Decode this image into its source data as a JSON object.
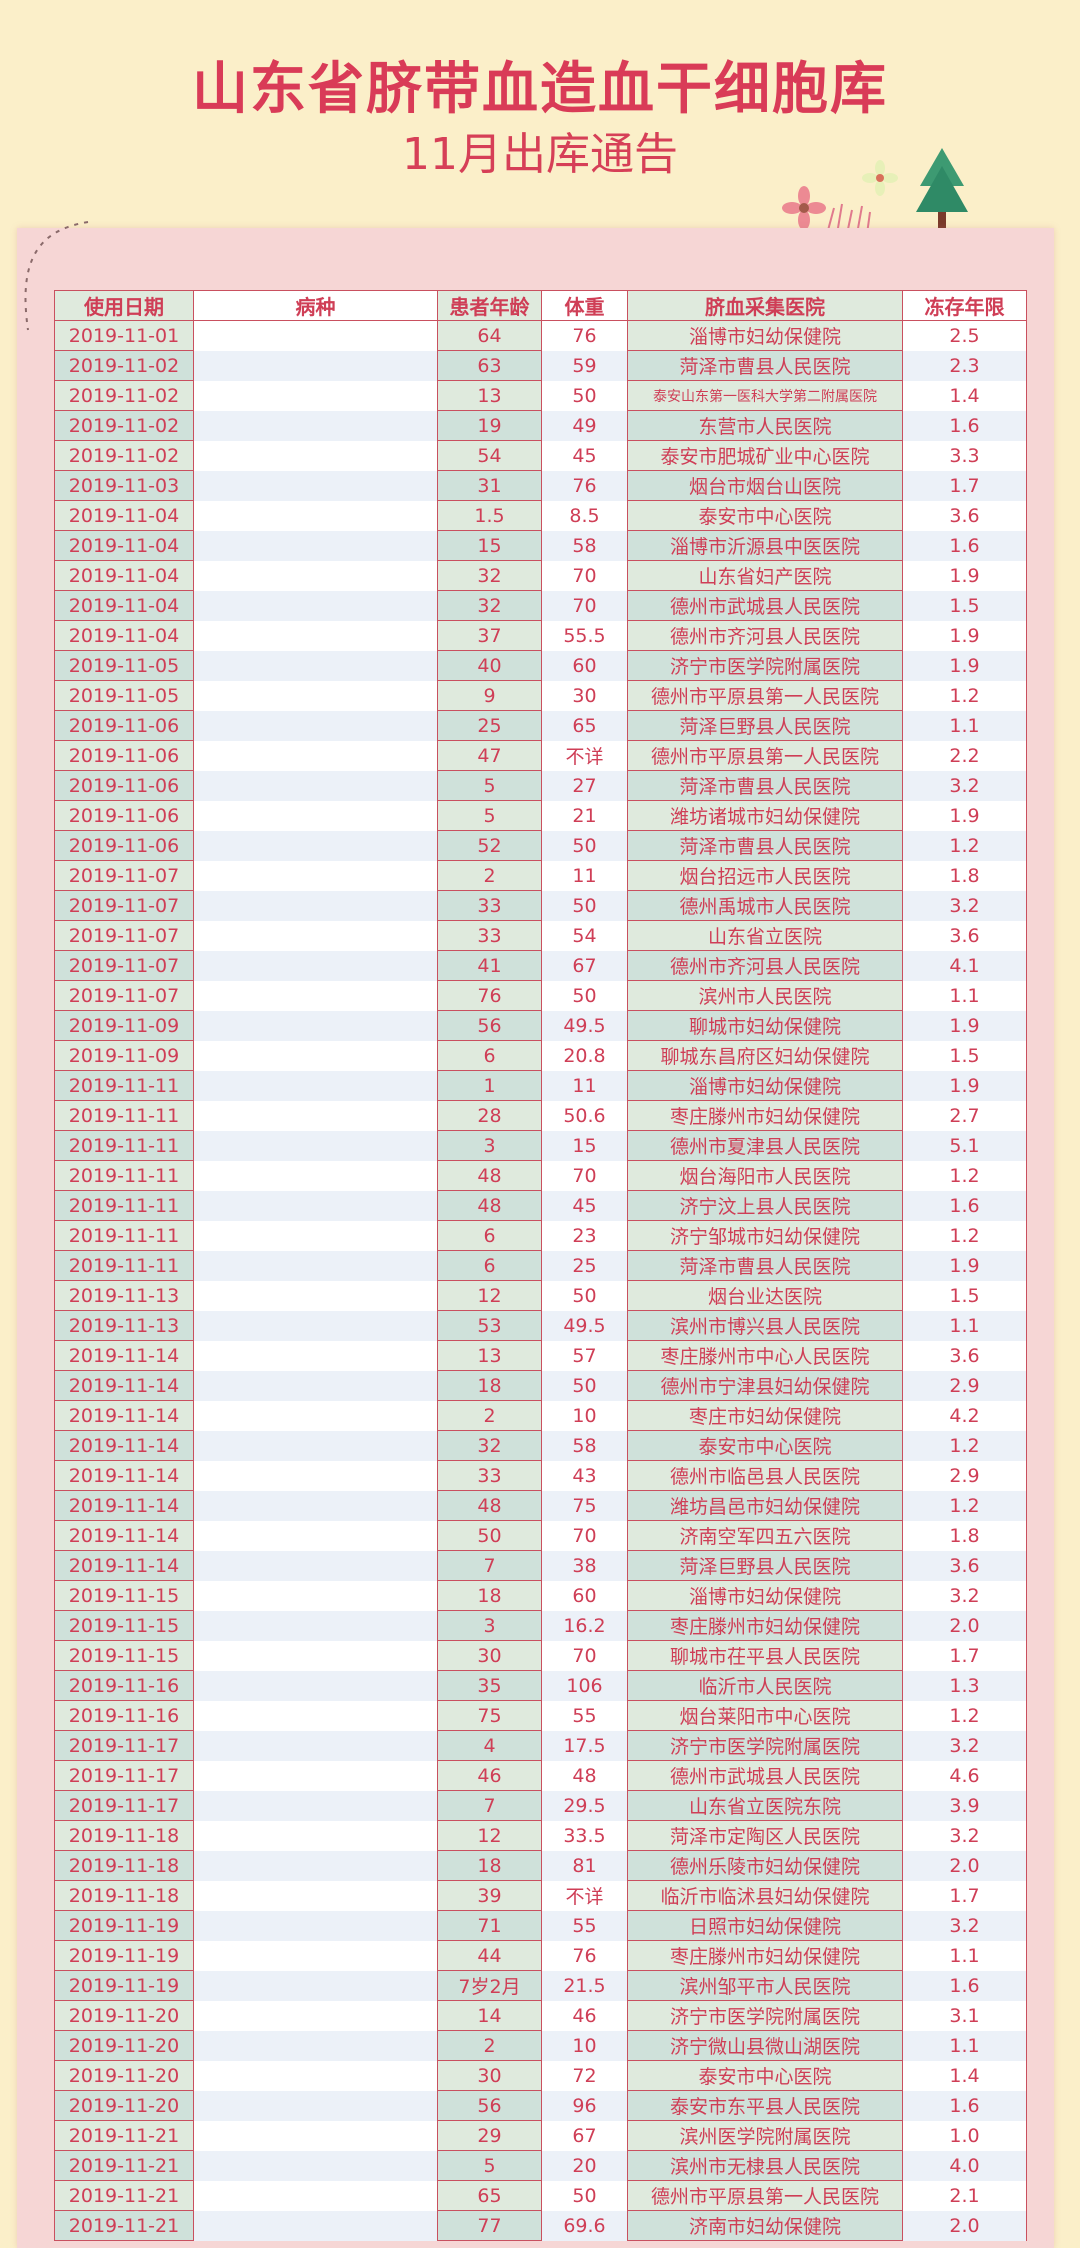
{
  "header": {
    "title": "山东省脐带血造血干细胞库",
    "subtitle": "11月出库通告"
  },
  "colors": {
    "title": "#d93b57",
    "background": "#fbefc9",
    "panel": "#f6d6d5",
    "text": "#cf3e56"
  },
  "table": {
    "columns": [
      "使用日期",
      "病种",
      "患者年龄",
      "体重",
      "脐血采集医院",
      "冻存年限"
    ],
    "rows": [
      [
        "2019-11-01",
        "",
        "64",
        "76",
        "淄博市妇幼保健院",
        "2.5"
      ],
      [
        "2019-11-02",
        "",
        "63",
        "59",
        "菏泽市曹县人民医院",
        "2.3"
      ],
      [
        "2019-11-02",
        "",
        "13",
        "50",
        "泰安山东第一医科大学第二附属医院",
        "1.4"
      ],
      [
        "2019-11-02",
        "",
        "19",
        "49",
        "东营市人民医院",
        "1.6"
      ],
      [
        "2019-11-02",
        "",
        "54",
        "45",
        "泰安市肥城矿业中心医院",
        "3.3"
      ],
      [
        "2019-11-03",
        "",
        "31",
        "76",
        "烟台市烟台山医院",
        "1.7"
      ],
      [
        "2019-11-04",
        "",
        "1.5",
        "8.5",
        "泰安市中心医院",
        "3.6"
      ],
      [
        "2019-11-04",
        "",
        "15",
        "58",
        "淄博市沂源县中医医院",
        "1.6"
      ],
      [
        "2019-11-04",
        "",
        "32",
        "70",
        "山东省妇产医院",
        "1.9"
      ],
      [
        "2019-11-04",
        "",
        "32",
        "70",
        "德州市武城县人民医院",
        "1.5"
      ],
      [
        "2019-11-04",
        "",
        "37",
        "55.5",
        "德州市齐河县人民医院",
        "1.9"
      ],
      [
        "2019-11-05",
        "",
        "40",
        "60",
        "济宁市医学院附属医院",
        "1.9"
      ],
      [
        "2019-11-05",
        "",
        "9",
        "30",
        "德州市平原县第一人民医院",
        "1.2"
      ],
      [
        "2019-11-06",
        "",
        "25",
        "65",
        "菏泽巨野县人民医院",
        "1.1"
      ],
      [
        "2019-11-06",
        "",
        "47",
        "不详",
        "德州市平原县第一人民医院",
        "2.2"
      ],
      [
        "2019-11-06",
        "",
        "5",
        "27",
        "菏泽市曹县人民医院",
        "3.2"
      ],
      [
        "2019-11-06",
        "",
        "5",
        "21",
        "潍坊诸城市妇幼保健院",
        "1.9"
      ],
      [
        "2019-11-06",
        "",
        "52",
        "50",
        "菏泽市曹县人民医院",
        "1.2"
      ],
      [
        "2019-11-07",
        "",
        "2",
        "11",
        "烟台招远市人民医院",
        "1.8"
      ],
      [
        "2019-11-07",
        "",
        "33",
        "50",
        "德州禹城市人民医院",
        "3.2"
      ],
      [
        "2019-11-07",
        "",
        "33",
        "54",
        "山东省立医院",
        "3.6"
      ],
      [
        "2019-11-07",
        "",
        "41",
        "67",
        "德州市齐河县人民医院",
        "4.1"
      ],
      [
        "2019-11-07",
        "",
        "76",
        "50",
        "滨州市人民医院",
        "1.1"
      ],
      [
        "2019-11-09",
        "",
        "56",
        "49.5",
        "聊城市妇幼保健院",
        "1.9"
      ],
      [
        "2019-11-09",
        "",
        "6",
        "20.8",
        "聊城东昌府区妇幼保健院",
        "1.5"
      ],
      [
        "2019-11-11",
        "",
        "1",
        "11",
        "淄博市妇幼保健院",
        "1.9"
      ],
      [
        "2019-11-11",
        "",
        "28",
        "50.6",
        "枣庄滕州市妇幼保健院",
        "2.7"
      ],
      [
        "2019-11-11",
        "",
        "3",
        "15",
        "德州市夏津县人民医院",
        "5.1"
      ],
      [
        "2019-11-11",
        "",
        "48",
        "70",
        "烟台海阳市人民医院",
        "1.2"
      ],
      [
        "2019-11-11",
        "",
        "48",
        "45",
        "济宁汶上县人民医院",
        "1.6"
      ],
      [
        "2019-11-11",
        "",
        "6",
        "23",
        "济宁邹城市妇幼保健院",
        "1.2"
      ],
      [
        "2019-11-11",
        "",
        "6",
        "25",
        "菏泽市曹县人民医院",
        "1.9"
      ],
      [
        "2019-11-13",
        "",
        "12",
        "50",
        "烟台业达医院",
        "1.5"
      ],
      [
        "2019-11-13",
        "",
        "53",
        "49.5",
        "滨州市博兴县人民医院",
        "1.1"
      ],
      [
        "2019-11-14",
        "",
        "13",
        "57",
        "枣庄滕州市中心人民医院",
        "3.6"
      ],
      [
        "2019-11-14",
        "",
        "18",
        "50",
        "德州市宁津县妇幼保健院",
        "2.9"
      ],
      [
        "2019-11-14",
        "",
        "2",
        "10",
        "枣庄市妇幼保健院",
        "4.2"
      ],
      [
        "2019-11-14",
        "",
        "32",
        "58",
        "泰安市中心医院",
        "1.2"
      ],
      [
        "2019-11-14",
        "",
        "33",
        "43",
        "德州市临邑县人民医院",
        "2.9"
      ],
      [
        "2019-11-14",
        "",
        "48",
        "75",
        "潍坊昌邑市妇幼保健院",
        "1.2"
      ],
      [
        "2019-11-14",
        "",
        "50",
        "70",
        "济南空军四五六医院",
        "1.8"
      ],
      [
        "2019-11-14",
        "",
        "7",
        "38",
        "菏泽巨野县人民医院",
        "3.6"
      ],
      [
        "2019-11-15",
        "",
        "18",
        "60",
        "淄博市妇幼保健院",
        "3.2"
      ],
      [
        "2019-11-15",
        "",
        "3",
        "16.2",
        "枣庄滕州市妇幼保健院",
        "2.0"
      ],
      [
        "2019-11-15",
        "",
        "30",
        "70",
        "聊城市茌平县人民医院",
        "1.7"
      ],
      [
        "2019-11-16",
        "",
        "35",
        "106",
        "临沂市人民医院",
        "1.3"
      ],
      [
        "2019-11-16",
        "",
        "75",
        "55",
        "烟台莱阳市中心医院",
        "1.2"
      ],
      [
        "2019-11-17",
        "",
        "4",
        "17.5",
        "济宁市医学院附属医院",
        "3.2"
      ],
      [
        "2019-11-17",
        "",
        "46",
        "48",
        "德州市武城县人民医院",
        "4.6"
      ],
      [
        "2019-11-17",
        "",
        "7",
        "29.5",
        "山东省立医院东院",
        "3.9"
      ],
      [
        "2019-11-18",
        "",
        "12",
        "33.5",
        "菏泽市定陶区人民医院",
        "3.2"
      ],
      [
        "2019-11-18",
        "",
        "18",
        "81",
        "德州乐陵市妇幼保健院",
        "2.0"
      ],
      [
        "2019-11-18",
        "",
        "39",
        "不详",
        "临沂市临沭县妇幼保健院",
        "1.7"
      ],
      [
        "2019-11-19",
        "",
        "71",
        "55",
        "日照市妇幼保健院",
        "3.2"
      ],
      [
        "2019-11-19",
        "",
        "44",
        "76",
        "枣庄滕州市妇幼保健院",
        "1.1"
      ],
      [
        "2019-11-19",
        "",
        "7岁2月",
        "21.5",
        "滨州邹平市人民医院",
        "1.6"
      ],
      [
        "2019-11-20",
        "",
        "14",
        "46",
        "济宁市医学院附属医院",
        "3.1"
      ],
      [
        "2019-11-20",
        "",
        "2",
        "10",
        "济宁微山县微山湖医院",
        "1.1"
      ],
      [
        "2019-11-20",
        "",
        "30",
        "72",
        "泰安市中心医院",
        "1.4"
      ],
      [
        "2019-11-20",
        "",
        "56",
        "96",
        "泰安市东平县人民医院",
        "1.6"
      ],
      [
        "2019-11-21",
        "",
        "29",
        "67",
        "滨州医学院附属医院",
        "1.0"
      ],
      [
        "2019-11-21",
        "",
        "5",
        "20",
        "滨州市无棣县人民医院",
        "4.0"
      ],
      [
        "2019-11-21",
        "",
        "65",
        "50",
        "德州市平原县第一人民医院",
        "2.1"
      ],
      [
        "2019-11-21",
        "",
        "77",
        "69.6",
        "济南市妇幼保健院",
        "2.0"
      ]
    ]
  }
}
